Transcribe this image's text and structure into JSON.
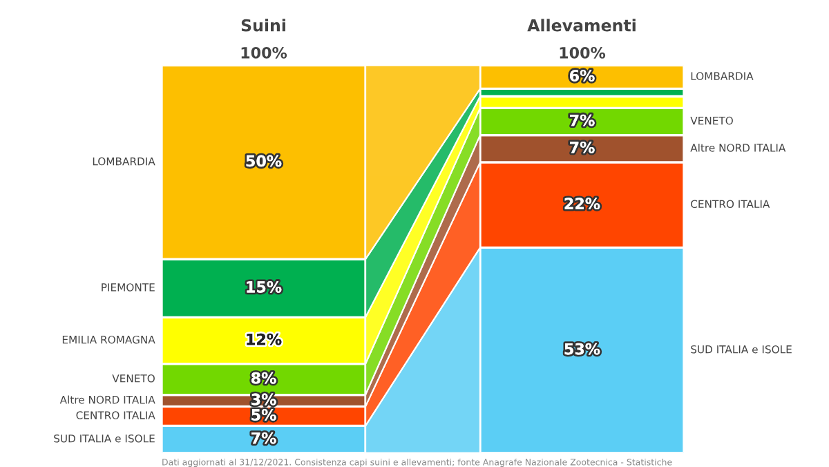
{
  "chart_data": {
    "type": "bar",
    "stacked": true,
    "categories": [
      "Suini",
      "Allevamenti"
    ],
    "ylim": [
      0,
      100
    ],
    "tick_labels": "x",
    "grid": false,
    "legend": false,
    "totals": [
      "100%",
      "100%"
    ],
    "series": [
      {
        "name": "SUD ITALIA e ISOLE",
        "color": "#5bcef5",
        "values": [
          7,
          53
        ],
        "value_labels": [
          "7%",
          "53%"
        ]
      },
      {
        "name": "CENTRO ITALIA",
        "color": "#ff4500",
        "values": [
          5,
          22
        ],
        "value_labels": [
          "5%",
          "22%"
        ]
      },
      {
        "name": "Altre NORD ITALIA",
        "color": "#a0522d",
        "values": [
          3,
          7
        ],
        "value_labels": [
          "3%",
          "7%"
        ]
      },
      {
        "name": "VENETO",
        "color": "#72d800",
        "values": [
          8,
          7
        ],
        "value_labels": [
          "8%",
          "7%"
        ]
      },
      {
        "name": "EMILIA ROMAGNA",
        "color": "#ffff00",
        "values": [
          12,
          3
        ],
        "value_labels": [
          "12%",
          null
        ]
      },
      {
        "name": "PIEMONTE",
        "color": "#00b050",
        "values": [
          15,
          2
        ],
        "value_labels": [
          "15%",
          null
        ]
      },
      {
        "name": "LOMBARDIA",
        "color": "#fdbf00",
        "values": [
          50,
          6
        ],
        "value_labels": [
          "50%",
          "6%"
        ]
      }
    ],
    "annotations": [
      "Dati aggiornati al 31/12/2021. Consistenza capi suini e allevamenti; fonte Anagrafe Nazionale Zootecnica - Statistiche"
    ]
  }
}
